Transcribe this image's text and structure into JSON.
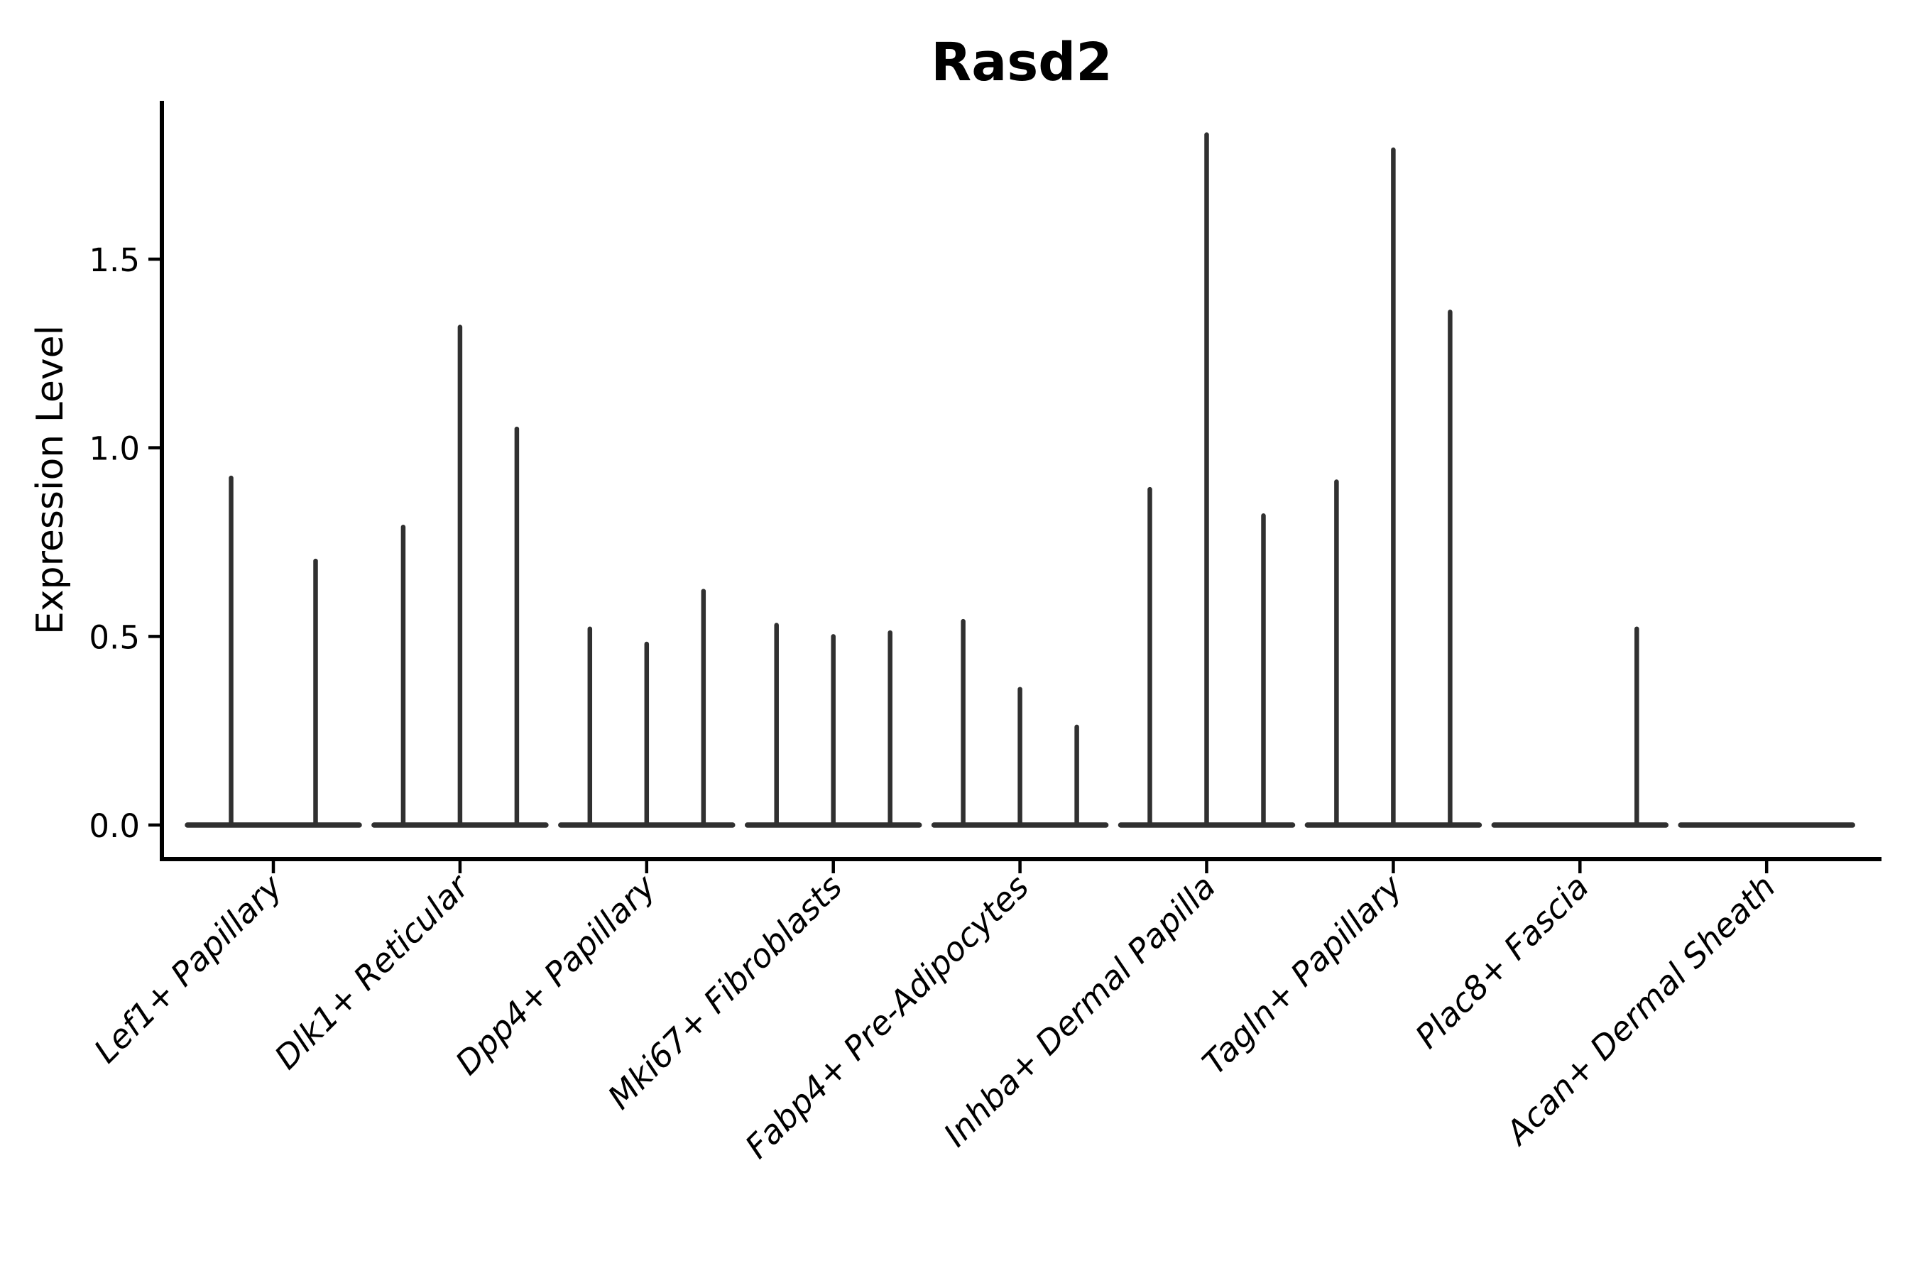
{
  "chart_data": {
    "type": "violin",
    "title": "Rasd2",
    "ylabel": "Expression Level",
    "xlabel": "",
    "ylim": [
      -0.09,
      1.92
    ],
    "ytick_values": [
      0.0,
      0.5,
      1.0,
      1.5
    ],
    "ytick_labels": [
      "0.0",
      "0.5",
      "1.0",
      "1.5"
    ],
    "grid": false,
    "legend": null,
    "categories": [
      "Lef1+ Papillary",
      "Dlk1+ Reticular",
      "Dpp4+ Papillary",
      "Mki67+ Fibroblasts",
      "Fabp4+ Pre-Adipocytes",
      "Inhba+ Dermal Papilla",
      "Tagln+ Papillary",
      "Plac8+ Fascia",
      "Acan+ Dermal Sheath"
    ],
    "groups": [
      {
        "label": "Lef1+ Papillary",
        "violin_max_values": [
          0.92,
          0.7
        ]
      },
      {
        "label": "Dlk1+ Reticular",
        "violin_max_values": [
          0.79,
          1.32,
          1.05
        ]
      },
      {
        "label": "Dpp4+ Papillary",
        "violin_max_values": [
          0.52,
          0.48,
          0.62
        ]
      },
      {
        "label": "Mki67+ Fibroblasts",
        "violin_max_values": [
          0.53,
          0.5,
          0.51
        ]
      },
      {
        "label": "Fabp4+ Pre-Adipocytes",
        "violin_max_values": [
          0.54,
          0.36,
          0.26
        ]
      },
      {
        "label": "Inhba+ Dermal Papilla",
        "violin_max_values": [
          0.89,
          1.83,
          0.82
        ]
      },
      {
        "label": "Tagln+ Papillary",
        "violin_max_values": [
          0.91,
          1.79,
          1.36
        ]
      },
      {
        "label": "Plac8+ Fascia",
        "violin_max_values": [
          0.0,
          0.0,
          0.52
        ]
      },
      {
        "label": "Acan+ Dermal Sheath",
        "violin_max_values": [
          0.0,
          0.0,
          0.0
        ]
      }
    ],
    "colors": {
      "violin_line": "#303030",
      "axis": "#000000",
      "text": "#000000",
      "background": "#ffffff"
    }
  }
}
